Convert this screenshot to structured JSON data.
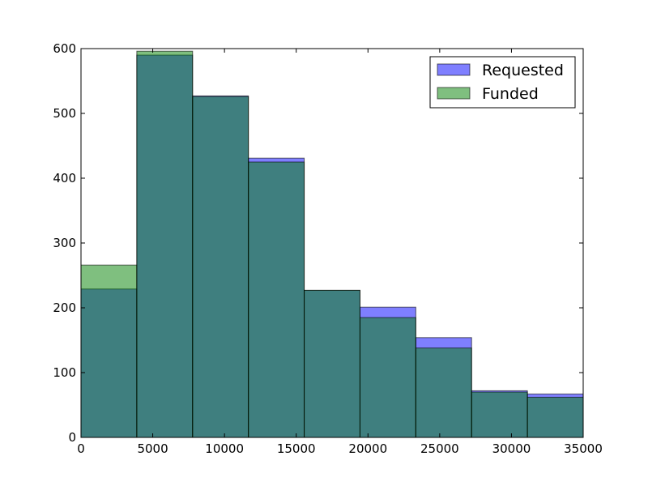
{
  "chart_data": {
    "type": "bar",
    "title": "",
    "xlabel": "",
    "ylabel": "",
    "xlim": [
      0,
      35000
    ],
    "ylim": [
      0,
      600
    ],
    "bin_edges": [
      0,
      3888.9,
      7777.8,
      11666.7,
      15555.6,
      19444.4,
      23333.3,
      27222.2,
      31111.1,
      35000
    ],
    "series": [
      {
        "name": "Requested",
        "values": [
          229,
          590,
          527,
          431,
          227,
          201,
          154,
          72,
          67
        ],
        "color": "#0000ff",
        "opacity": 0.5
      },
      {
        "name": "Funded",
        "values": [
          266,
          596,
          526,
          425,
          227,
          185,
          138,
          70,
          62
        ],
        "color": "#008000",
        "opacity": 0.5
      }
    ],
    "x_ticks": [
      0,
      5000,
      10000,
      15000,
      20000,
      25000,
      30000,
      35000
    ],
    "y_ticks": [
      0,
      100,
      200,
      300,
      400,
      500,
      600
    ],
    "grid": false,
    "legend": {
      "position": "top-right",
      "entries": [
        "Requested",
        "Funded"
      ]
    }
  }
}
